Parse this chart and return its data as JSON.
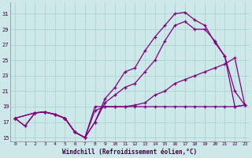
{
  "xlabel": "Windchill (Refroidissement éolien,°C)",
  "background_color": "#cce8e8",
  "line_color": "#800080",
  "grid_color": "#aacece",
  "xlim": [
    -0.5,
    23.5
  ],
  "ylim": [
    14.5,
    32.5
  ],
  "yticks": [
    15,
    17,
    19,
    21,
    23,
    25,
    27,
    29,
    31
  ],
  "xticks": [
    0,
    1,
    2,
    3,
    4,
    5,
    6,
    7,
    8,
    9,
    10,
    11,
    12,
    13,
    14,
    15,
    16,
    17,
    18,
    19,
    20,
    21,
    22,
    23
  ],
  "series1_x": [
    0,
    1,
    2,
    3,
    4,
    5,
    6,
    7,
    8,
    9,
    10,
    11,
    12,
    13,
    14,
    15,
    16,
    17,
    18,
    19,
    20,
    21,
    22,
    23
  ],
  "series1_y": [
    17.5,
    16.5,
    18.2,
    18.3,
    18.0,
    17.5,
    15.7,
    15.0,
    17.0,
    20.0,
    21.5,
    23.5,
    24.0,
    26.2,
    28.0,
    29.5,
    31.0,
    31.2,
    30.2,
    29.5,
    27.3,
    25.5,
    21.0,
    19.2
  ],
  "series2_x": [
    0,
    1,
    2,
    3,
    4,
    5,
    6,
    7,
    8,
    9,
    10,
    11,
    12,
    13,
    14,
    15,
    16,
    17,
    18,
    19,
    20,
    21,
    22,
    23
  ],
  "series2_y": [
    17.5,
    16.5,
    18.2,
    18.3,
    18.0,
    17.5,
    15.7,
    15.0,
    17.0,
    19.5,
    20.5,
    21.5,
    22.0,
    23.5,
    25.0,
    27.5,
    29.5,
    30.0,
    29.0,
    29.0,
    27.5,
    25.5,
    19.0,
    19.2
  ],
  "series3_x": [
    0,
    2,
    3,
    4,
    5,
    6,
    7,
    8,
    9,
    10,
    11,
    12,
    13,
    14,
    15,
    16,
    17,
    18,
    19,
    20,
    21,
    22,
    23
  ],
  "series3_y": [
    17.5,
    18.2,
    18.3,
    18.0,
    17.5,
    15.7,
    15.0,
    19.0,
    19.0,
    19.0,
    19.0,
    19.2,
    19.5,
    20.5,
    21.0,
    22.0,
    22.5,
    23.0,
    23.5,
    24.0,
    24.5,
    25.3,
    19.2
  ],
  "series4_x": [
    0,
    2,
    3,
    4,
    5,
    6,
    7,
    8,
    9,
    10,
    11,
    12,
    13,
    14,
    15,
    16,
    17,
    18,
    19,
    20,
    21,
    22,
    23
  ],
  "series4_y": [
    17.5,
    18.2,
    18.3,
    18.0,
    17.5,
    15.7,
    15.0,
    18.5,
    19.0,
    19.0,
    19.0,
    19.0,
    19.0,
    19.0,
    19.0,
    19.0,
    19.0,
    19.0,
    19.0,
    19.0,
    19.0,
    19.0,
    19.2
  ]
}
